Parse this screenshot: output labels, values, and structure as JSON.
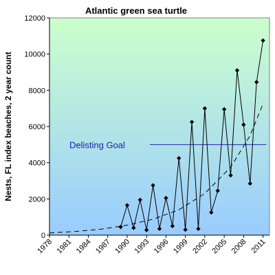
{
  "chart_data": {
    "type": "line",
    "title": "Atlantic green sea turtle",
    "xlabel": "",
    "ylabel": "Nests, FL index beaches, 2 year count",
    "xlim": [
      1978,
      2012
    ],
    "ylim": [
      0,
      12000
    ],
    "x_ticks": [
      "1978",
      "1981",
      "1984",
      "1987",
      "1990",
      "1993",
      "1996",
      "1999",
      "2002",
      "2005",
      "2008",
      "2011"
    ],
    "y_ticks": [
      "0",
      "2000",
      "4000",
      "6000",
      "8000",
      "10000",
      "12000"
    ],
    "grid": false,
    "colors": {
      "background_top": "#ccffcc",
      "background_bottom": "#99ccff",
      "data_line": "#000000",
      "trend_line": "#000000",
      "goal_line": "#1f1fa3",
      "goal_label": "#1f1fa3"
    },
    "series": [
      {
        "style": "solid-with-diamond-markers",
        "x": [
          1989,
          1990,
          1991,
          1992,
          1993,
          1994,
          1995,
          1996,
          1997,
          1998,
          1999,
          2000,
          2001,
          2002,
          2003,
          2004,
          2005,
          2006,
          2007,
          2008,
          2009,
          2010,
          2011
        ],
        "y": [
          450,
          1650,
          400,
          1950,
          280,
          2750,
          350,
          2050,
          500,
          4250,
          300,
          6250,
          350,
          7000,
          1250,
          2450,
          6950,
          3300,
          9100,
          6100,
          2850,
          8450,
          10750
        ]
      },
      {
        "style": "dashed-trend",
        "x": [
          1978,
          1982,
          1986,
          1990,
          1994,
          1998,
          2002,
          2006,
          2009,
          2011
        ],
        "y": [
          120,
          200,
          330,
          550,
          880,
          1400,
          2300,
          3750,
          5500,
          7250
        ]
      }
    ],
    "reference_lines": [
      {
        "label": "Delisting Goal",
        "y": 5000,
        "x_from": 1993.5,
        "x_to": 2011.5
      }
    ]
  }
}
